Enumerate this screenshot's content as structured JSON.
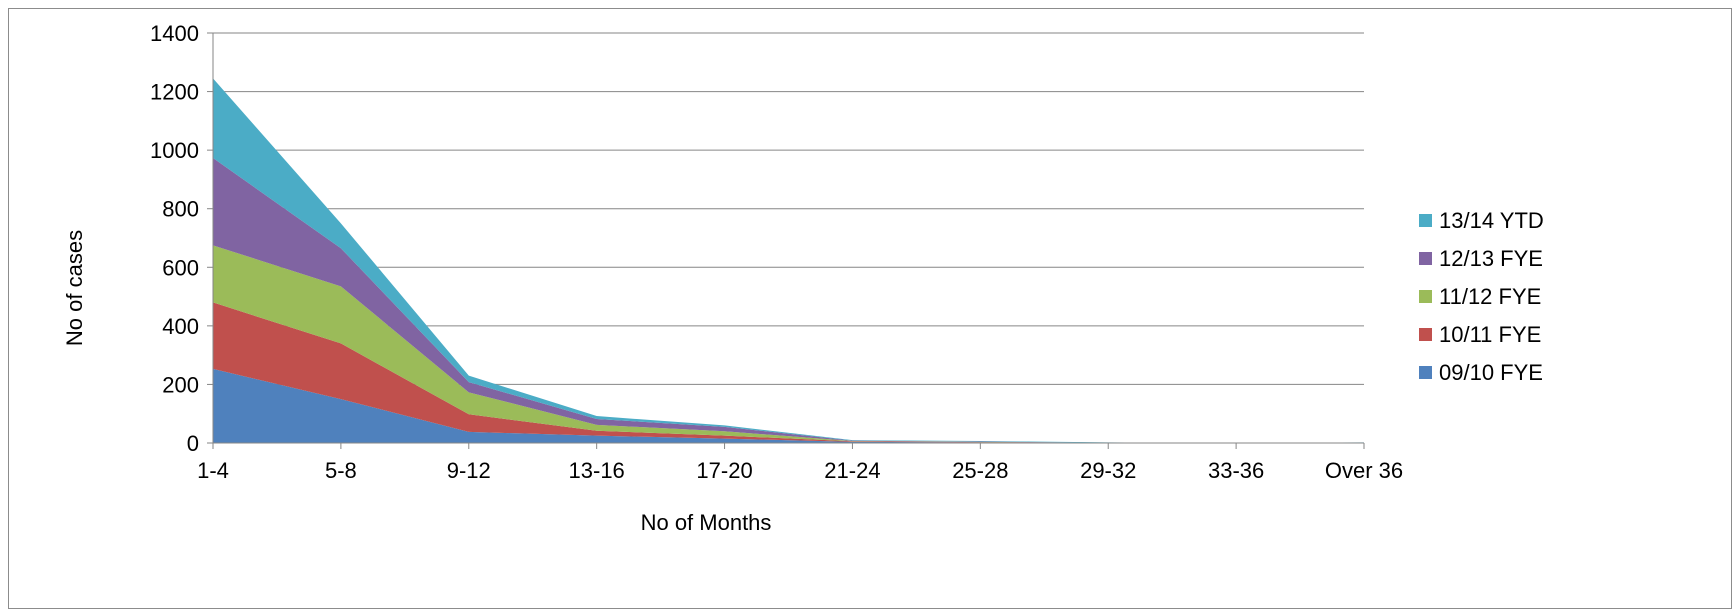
{
  "chart_data": {
    "type": "area",
    "stacked": true,
    "title": "",
    "xlabel": "No of Months",
    "ylabel": "No of cases",
    "ylim": [
      0,
      1400
    ],
    "yticks": [
      0,
      200,
      400,
      600,
      800,
      1000,
      1200,
      1400
    ],
    "grid": true,
    "legend_position": "right",
    "categories": [
      "1-4",
      "5-8",
      "9-12",
      "13-16",
      "17-20",
      "21-24",
      "25-28",
      "29-32",
      "33-36",
      "Over 36"
    ],
    "series": [
      {
        "name": "09/10 FYE",
        "color": "#4F81BD",
        "values": [
          253,
          150,
          38,
          25,
          15,
          4,
          2,
          1,
          0,
          1
        ]
      },
      {
        "name": "10/11 FYE",
        "color": "#C0504D",
        "values": [
          227,
          190,
          60,
          17,
          10,
          2,
          1,
          0,
          0,
          0
        ]
      },
      {
        "name": "11/12 FYE",
        "color": "#9BBB59",
        "values": [
          195,
          195,
          75,
          20,
          15,
          1,
          1,
          0,
          0,
          0
        ]
      },
      {
        "name": "12/13 FYE",
        "color": "#8064A2",
        "values": [
          298,
          130,
          35,
          20,
          15,
          1,
          1,
          0,
          0,
          0
        ]
      },
      {
        "name": "13/14 YTD",
        "color": "#4BACC6",
        "values": [
          272,
          85,
          22,
          10,
          5,
          2,
          2,
          1,
          0,
          1
        ]
      }
    ]
  }
}
